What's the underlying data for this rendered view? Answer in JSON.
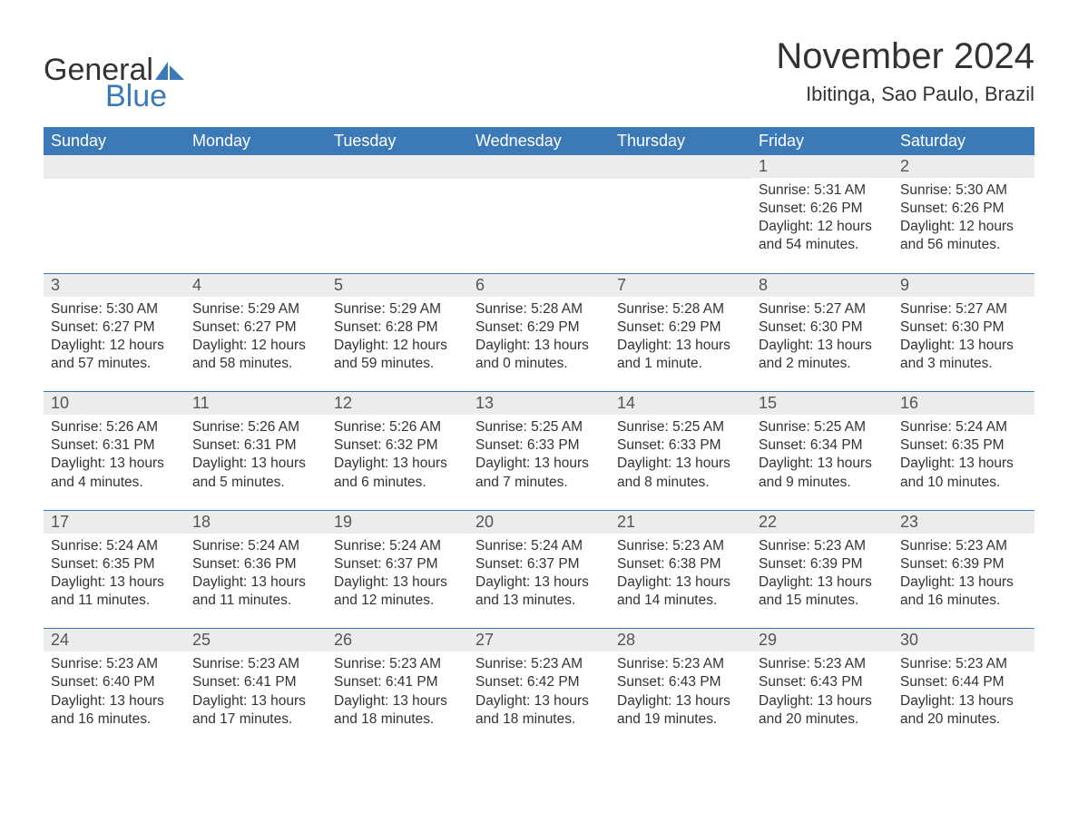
{
  "logo": {
    "text_general": "General",
    "text_blue": "Blue",
    "sail_color": "#3b79b7"
  },
  "header": {
    "month_title": "November 2024",
    "location": "Ibitinga, Sao Paulo, Brazil"
  },
  "colors": {
    "header_bg": "#3b79b7",
    "header_text": "#ffffff",
    "daynum_bg": "#ececec",
    "body_text": "#333333",
    "rule": "#3b79b7"
  },
  "fonts": {
    "title_size_pt": 40,
    "location_size_pt": 22,
    "weekday_size_pt": 18,
    "daynum_size_pt": 18,
    "body_size_pt": 15.5,
    "family": "Arial"
  },
  "weekdays": [
    "Sunday",
    "Monday",
    "Tuesday",
    "Wednesday",
    "Thursday",
    "Friday",
    "Saturday"
  ],
  "weeks": [
    [
      null,
      null,
      null,
      null,
      null,
      {
        "n": "1",
        "sunrise": "Sunrise: 5:31 AM",
        "sunset": "Sunset: 6:26 PM",
        "daylight": "Daylight: 12 hours and 54 minutes."
      },
      {
        "n": "2",
        "sunrise": "Sunrise: 5:30 AM",
        "sunset": "Sunset: 6:26 PM",
        "daylight": "Daylight: 12 hours and 56 minutes."
      }
    ],
    [
      {
        "n": "3",
        "sunrise": "Sunrise: 5:30 AM",
        "sunset": "Sunset: 6:27 PM",
        "daylight": "Daylight: 12 hours and 57 minutes."
      },
      {
        "n": "4",
        "sunrise": "Sunrise: 5:29 AM",
        "sunset": "Sunset: 6:27 PM",
        "daylight": "Daylight: 12 hours and 58 minutes."
      },
      {
        "n": "5",
        "sunrise": "Sunrise: 5:29 AM",
        "sunset": "Sunset: 6:28 PM",
        "daylight": "Daylight: 12 hours and 59 minutes."
      },
      {
        "n": "6",
        "sunrise": "Sunrise: 5:28 AM",
        "sunset": "Sunset: 6:29 PM",
        "daylight": "Daylight: 13 hours and 0 minutes."
      },
      {
        "n": "7",
        "sunrise": "Sunrise: 5:28 AM",
        "sunset": "Sunset: 6:29 PM",
        "daylight": "Daylight: 13 hours and 1 minute."
      },
      {
        "n": "8",
        "sunrise": "Sunrise: 5:27 AM",
        "sunset": "Sunset: 6:30 PM",
        "daylight": "Daylight: 13 hours and 2 minutes."
      },
      {
        "n": "9",
        "sunrise": "Sunrise: 5:27 AM",
        "sunset": "Sunset: 6:30 PM",
        "daylight": "Daylight: 13 hours and 3 minutes."
      }
    ],
    [
      {
        "n": "10",
        "sunrise": "Sunrise: 5:26 AM",
        "sunset": "Sunset: 6:31 PM",
        "daylight": "Daylight: 13 hours and 4 minutes."
      },
      {
        "n": "11",
        "sunrise": "Sunrise: 5:26 AM",
        "sunset": "Sunset: 6:31 PM",
        "daylight": "Daylight: 13 hours and 5 minutes."
      },
      {
        "n": "12",
        "sunrise": "Sunrise: 5:26 AM",
        "sunset": "Sunset: 6:32 PM",
        "daylight": "Daylight: 13 hours and 6 minutes."
      },
      {
        "n": "13",
        "sunrise": "Sunrise: 5:25 AM",
        "sunset": "Sunset: 6:33 PM",
        "daylight": "Daylight: 13 hours and 7 minutes."
      },
      {
        "n": "14",
        "sunrise": "Sunrise: 5:25 AM",
        "sunset": "Sunset: 6:33 PM",
        "daylight": "Daylight: 13 hours and 8 minutes."
      },
      {
        "n": "15",
        "sunrise": "Sunrise: 5:25 AM",
        "sunset": "Sunset: 6:34 PM",
        "daylight": "Daylight: 13 hours and 9 minutes."
      },
      {
        "n": "16",
        "sunrise": "Sunrise: 5:24 AM",
        "sunset": "Sunset: 6:35 PM",
        "daylight": "Daylight: 13 hours and 10 minutes."
      }
    ],
    [
      {
        "n": "17",
        "sunrise": "Sunrise: 5:24 AM",
        "sunset": "Sunset: 6:35 PM",
        "daylight": "Daylight: 13 hours and 11 minutes."
      },
      {
        "n": "18",
        "sunrise": "Sunrise: 5:24 AM",
        "sunset": "Sunset: 6:36 PM",
        "daylight": "Daylight: 13 hours and 11 minutes."
      },
      {
        "n": "19",
        "sunrise": "Sunrise: 5:24 AM",
        "sunset": "Sunset: 6:37 PM",
        "daylight": "Daylight: 13 hours and 12 minutes."
      },
      {
        "n": "20",
        "sunrise": "Sunrise: 5:24 AM",
        "sunset": "Sunset: 6:37 PM",
        "daylight": "Daylight: 13 hours and 13 minutes."
      },
      {
        "n": "21",
        "sunrise": "Sunrise: 5:23 AM",
        "sunset": "Sunset: 6:38 PM",
        "daylight": "Daylight: 13 hours and 14 minutes."
      },
      {
        "n": "22",
        "sunrise": "Sunrise: 5:23 AM",
        "sunset": "Sunset: 6:39 PM",
        "daylight": "Daylight: 13 hours and 15 minutes."
      },
      {
        "n": "23",
        "sunrise": "Sunrise: 5:23 AM",
        "sunset": "Sunset: 6:39 PM",
        "daylight": "Daylight: 13 hours and 16 minutes."
      }
    ],
    [
      {
        "n": "24",
        "sunrise": "Sunrise: 5:23 AM",
        "sunset": "Sunset: 6:40 PM",
        "daylight": "Daylight: 13 hours and 16 minutes."
      },
      {
        "n": "25",
        "sunrise": "Sunrise: 5:23 AM",
        "sunset": "Sunset: 6:41 PM",
        "daylight": "Daylight: 13 hours and 17 minutes."
      },
      {
        "n": "26",
        "sunrise": "Sunrise: 5:23 AM",
        "sunset": "Sunset: 6:41 PM",
        "daylight": "Daylight: 13 hours and 18 minutes."
      },
      {
        "n": "27",
        "sunrise": "Sunrise: 5:23 AM",
        "sunset": "Sunset: 6:42 PM",
        "daylight": "Daylight: 13 hours and 18 minutes."
      },
      {
        "n": "28",
        "sunrise": "Sunrise: 5:23 AM",
        "sunset": "Sunset: 6:43 PM",
        "daylight": "Daylight: 13 hours and 19 minutes."
      },
      {
        "n": "29",
        "sunrise": "Sunrise: 5:23 AM",
        "sunset": "Sunset: 6:43 PM",
        "daylight": "Daylight: 13 hours and 20 minutes."
      },
      {
        "n": "30",
        "sunrise": "Sunrise: 5:23 AM",
        "sunset": "Sunset: 6:44 PM",
        "daylight": "Daylight: 13 hours and 20 minutes."
      }
    ]
  ]
}
